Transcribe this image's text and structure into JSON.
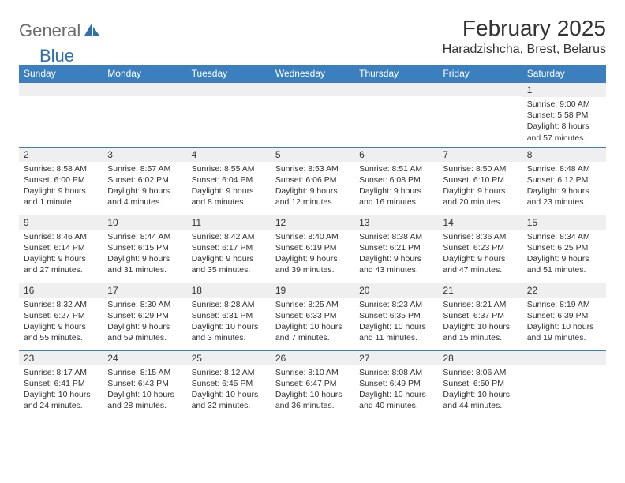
{
  "brand": {
    "part1": "General",
    "part2": "Blue"
  },
  "title": "February 2025",
  "location": "Haradzishcha, Brest, Belarus",
  "colors": {
    "header_bg": "#3b7fbf",
    "header_text": "#ffffff",
    "daynum_bg": "#efefef",
    "border": "#3b7fbf",
    "logo_gray": "#6b6b6b",
    "logo_blue": "#2f6fab",
    "text": "#333333",
    "background": "#ffffff"
  },
  "typography": {
    "title_fontsize": 28,
    "location_fontsize": 16,
    "dayhdr_fontsize": 12,
    "daynum_fontsize": 12,
    "info_fontsize": 10.5
  },
  "day_headers": [
    "Sunday",
    "Monday",
    "Tuesday",
    "Wednesday",
    "Thursday",
    "Friday",
    "Saturday"
  ],
  "weeks": [
    [
      {
        "n": "",
        "sr": "",
        "ss": "",
        "dl": ""
      },
      {
        "n": "",
        "sr": "",
        "ss": "",
        "dl": ""
      },
      {
        "n": "",
        "sr": "",
        "ss": "",
        "dl": ""
      },
      {
        "n": "",
        "sr": "",
        "ss": "",
        "dl": ""
      },
      {
        "n": "",
        "sr": "",
        "ss": "",
        "dl": ""
      },
      {
        "n": "",
        "sr": "",
        "ss": "",
        "dl": ""
      },
      {
        "n": "1",
        "sr": "Sunrise: 9:00 AM",
        "ss": "Sunset: 5:58 PM",
        "dl": "Daylight: 8 hours and 57 minutes."
      }
    ],
    [
      {
        "n": "2",
        "sr": "Sunrise: 8:58 AM",
        "ss": "Sunset: 6:00 PM",
        "dl": "Daylight: 9 hours and 1 minute."
      },
      {
        "n": "3",
        "sr": "Sunrise: 8:57 AM",
        "ss": "Sunset: 6:02 PM",
        "dl": "Daylight: 9 hours and 4 minutes."
      },
      {
        "n": "4",
        "sr": "Sunrise: 8:55 AM",
        "ss": "Sunset: 6:04 PM",
        "dl": "Daylight: 9 hours and 8 minutes."
      },
      {
        "n": "5",
        "sr": "Sunrise: 8:53 AM",
        "ss": "Sunset: 6:06 PM",
        "dl": "Daylight: 9 hours and 12 minutes."
      },
      {
        "n": "6",
        "sr": "Sunrise: 8:51 AM",
        "ss": "Sunset: 6:08 PM",
        "dl": "Daylight: 9 hours and 16 minutes."
      },
      {
        "n": "7",
        "sr": "Sunrise: 8:50 AM",
        "ss": "Sunset: 6:10 PM",
        "dl": "Daylight: 9 hours and 20 minutes."
      },
      {
        "n": "8",
        "sr": "Sunrise: 8:48 AM",
        "ss": "Sunset: 6:12 PM",
        "dl": "Daylight: 9 hours and 23 minutes."
      }
    ],
    [
      {
        "n": "9",
        "sr": "Sunrise: 8:46 AM",
        "ss": "Sunset: 6:14 PM",
        "dl": "Daylight: 9 hours and 27 minutes."
      },
      {
        "n": "10",
        "sr": "Sunrise: 8:44 AM",
        "ss": "Sunset: 6:15 PM",
        "dl": "Daylight: 9 hours and 31 minutes."
      },
      {
        "n": "11",
        "sr": "Sunrise: 8:42 AM",
        "ss": "Sunset: 6:17 PM",
        "dl": "Daylight: 9 hours and 35 minutes."
      },
      {
        "n": "12",
        "sr": "Sunrise: 8:40 AM",
        "ss": "Sunset: 6:19 PM",
        "dl": "Daylight: 9 hours and 39 minutes."
      },
      {
        "n": "13",
        "sr": "Sunrise: 8:38 AM",
        "ss": "Sunset: 6:21 PM",
        "dl": "Daylight: 9 hours and 43 minutes."
      },
      {
        "n": "14",
        "sr": "Sunrise: 8:36 AM",
        "ss": "Sunset: 6:23 PM",
        "dl": "Daylight: 9 hours and 47 minutes."
      },
      {
        "n": "15",
        "sr": "Sunrise: 8:34 AM",
        "ss": "Sunset: 6:25 PM",
        "dl": "Daylight: 9 hours and 51 minutes."
      }
    ],
    [
      {
        "n": "16",
        "sr": "Sunrise: 8:32 AM",
        "ss": "Sunset: 6:27 PM",
        "dl": "Daylight: 9 hours and 55 minutes."
      },
      {
        "n": "17",
        "sr": "Sunrise: 8:30 AM",
        "ss": "Sunset: 6:29 PM",
        "dl": "Daylight: 9 hours and 59 minutes."
      },
      {
        "n": "18",
        "sr": "Sunrise: 8:28 AM",
        "ss": "Sunset: 6:31 PM",
        "dl": "Daylight: 10 hours and 3 minutes."
      },
      {
        "n": "19",
        "sr": "Sunrise: 8:25 AM",
        "ss": "Sunset: 6:33 PM",
        "dl": "Daylight: 10 hours and 7 minutes."
      },
      {
        "n": "20",
        "sr": "Sunrise: 8:23 AM",
        "ss": "Sunset: 6:35 PM",
        "dl": "Daylight: 10 hours and 11 minutes."
      },
      {
        "n": "21",
        "sr": "Sunrise: 8:21 AM",
        "ss": "Sunset: 6:37 PM",
        "dl": "Daylight: 10 hours and 15 minutes."
      },
      {
        "n": "22",
        "sr": "Sunrise: 8:19 AM",
        "ss": "Sunset: 6:39 PM",
        "dl": "Daylight: 10 hours and 19 minutes."
      }
    ],
    [
      {
        "n": "23",
        "sr": "Sunrise: 8:17 AM",
        "ss": "Sunset: 6:41 PM",
        "dl": "Daylight: 10 hours and 24 minutes."
      },
      {
        "n": "24",
        "sr": "Sunrise: 8:15 AM",
        "ss": "Sunset: 6:43 PM",
        "dl": "Daylight: 10 hours and 28 minutes."
      },
      {
        "n": "25",
        "sr": "Sunrise: 8:12 AM",
        "ss": "Sunset: 6:45 PM",
        "dl": "Daylight: 10 hours and 32 minutes."
      },
      {
        "n": "26",
        "sr": "Sunrise: 8:10 AM",
        "ss": "Sunset: 6:47 PM",
        "dl": "Daylight: 10 hours and 36 minutes."
      },
      {
        "n": "27",
        "sr": "Sunrise: 8:08 AM",
        "ss": "Sunset: 6:49 PM",
        "dl": "Daylight: 10 hours and 40 minutes."
      },
      {
        "n": "28",
        "sr": "Sunrise: 8:06 AM",
        "ss": "Sunset: 6:50 PM",
        "dl": "Daylight: 10 hours and 44 minutes."
      },
      {
        "n": "",
        "sr": "",
        "ss": "",
        "dl": ""
      }
    ]
  ]
}
